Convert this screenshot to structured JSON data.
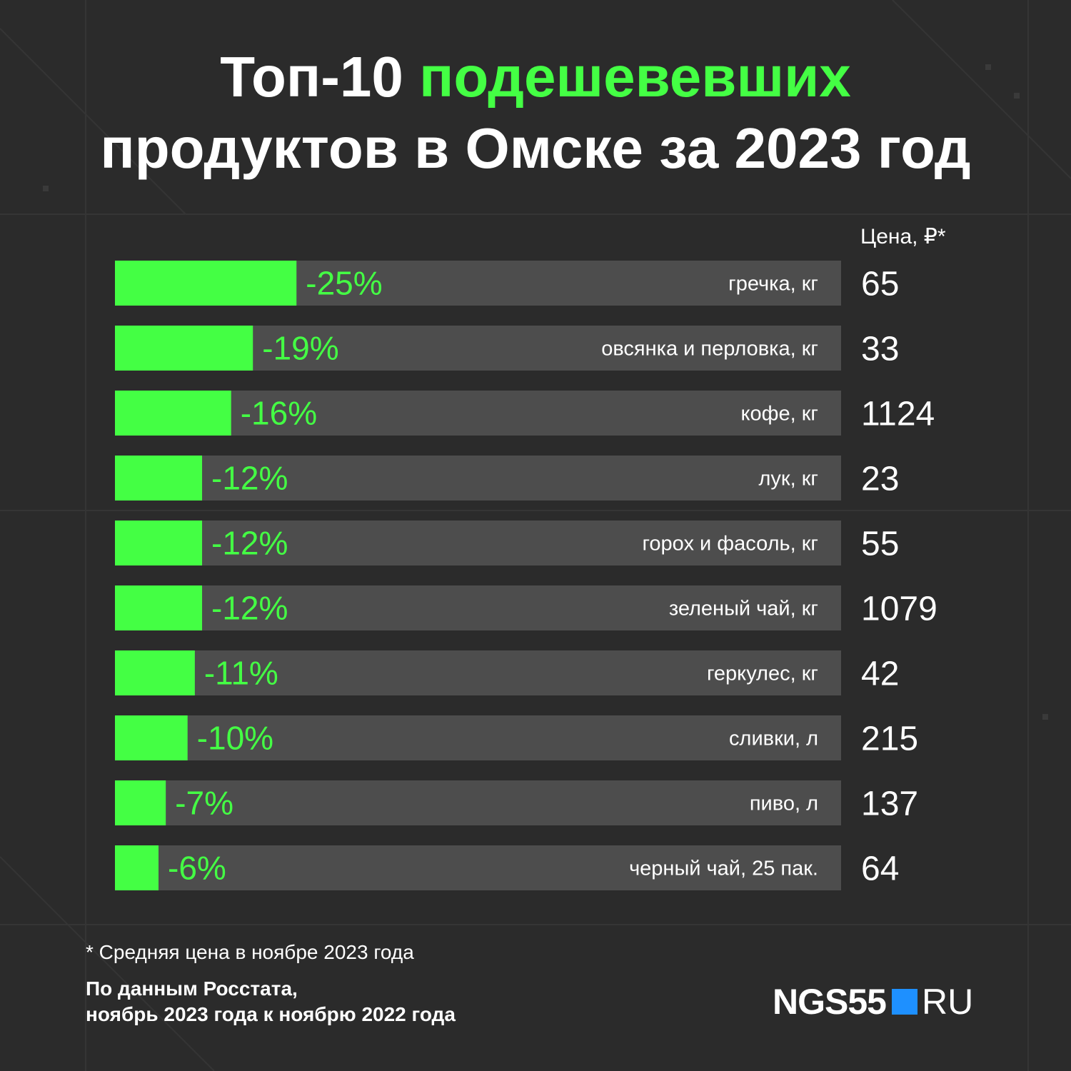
{
  "header": {
    "title_prefix": "Топ-10",
    "title_accent": "подешевевших",
    "title_line2": "продуктов в Омске за 2023 год"
  },
  "price_column_label": "Цена, ₽*",
  "footnote": "* Средняя цена в ноябре 2023 года",
  "source": {
    "line1": "По данным Росстата,",
    "line2": "ноябрь 2023 года к ноябрю 2022 года"
  },
  "logo": {
    "left_text": "NGS55",
    "right_text": "RU"
  },
  "colors": {
    "background": "#2b2b2b",
    "bar_fill": "#44ff44",
    "bar_track": "#4d4d4d",
    "text": "#ffffff",
    "logo_square": "#1e90ff"
  },
  "chart_data": {
    "type": "bar",
    "orientation": "horizontal",
    "categories": [
      "гречка, кг",
      "овсянка и перловка, кг",
      "кофе, кг",
      "лук, кг",
      "горох и фасоль, кг",
      "зеленый чай, кг",
      "геркулес, кг",
      "сливки, л",
      "пиво, л",
      "черный чай, 25 пак."
    ],
    "values": [
      -25,
      -19,
      -16,
      -12,
      -12,
      -12,
      -11,
      -10,
      -7,
      -6
    ],
    "value_labels": [
      "-25%",
      "-19%",
      "-16%",
      "-12%",
      "-12%",
      "-12%",
      "-11%",
      "-10%",
      "-7%",
      "-6%"
    ],
    "prices": [
      "65",
      "33",
      "1124",
      "23",
      "55",
      "1079",
      "42",
      "215",
      "137",
      "64"
    ],
    "xlim": [
      0,
      -100
    ],
    "grid": false,
    "legend": "none"
  }
}
